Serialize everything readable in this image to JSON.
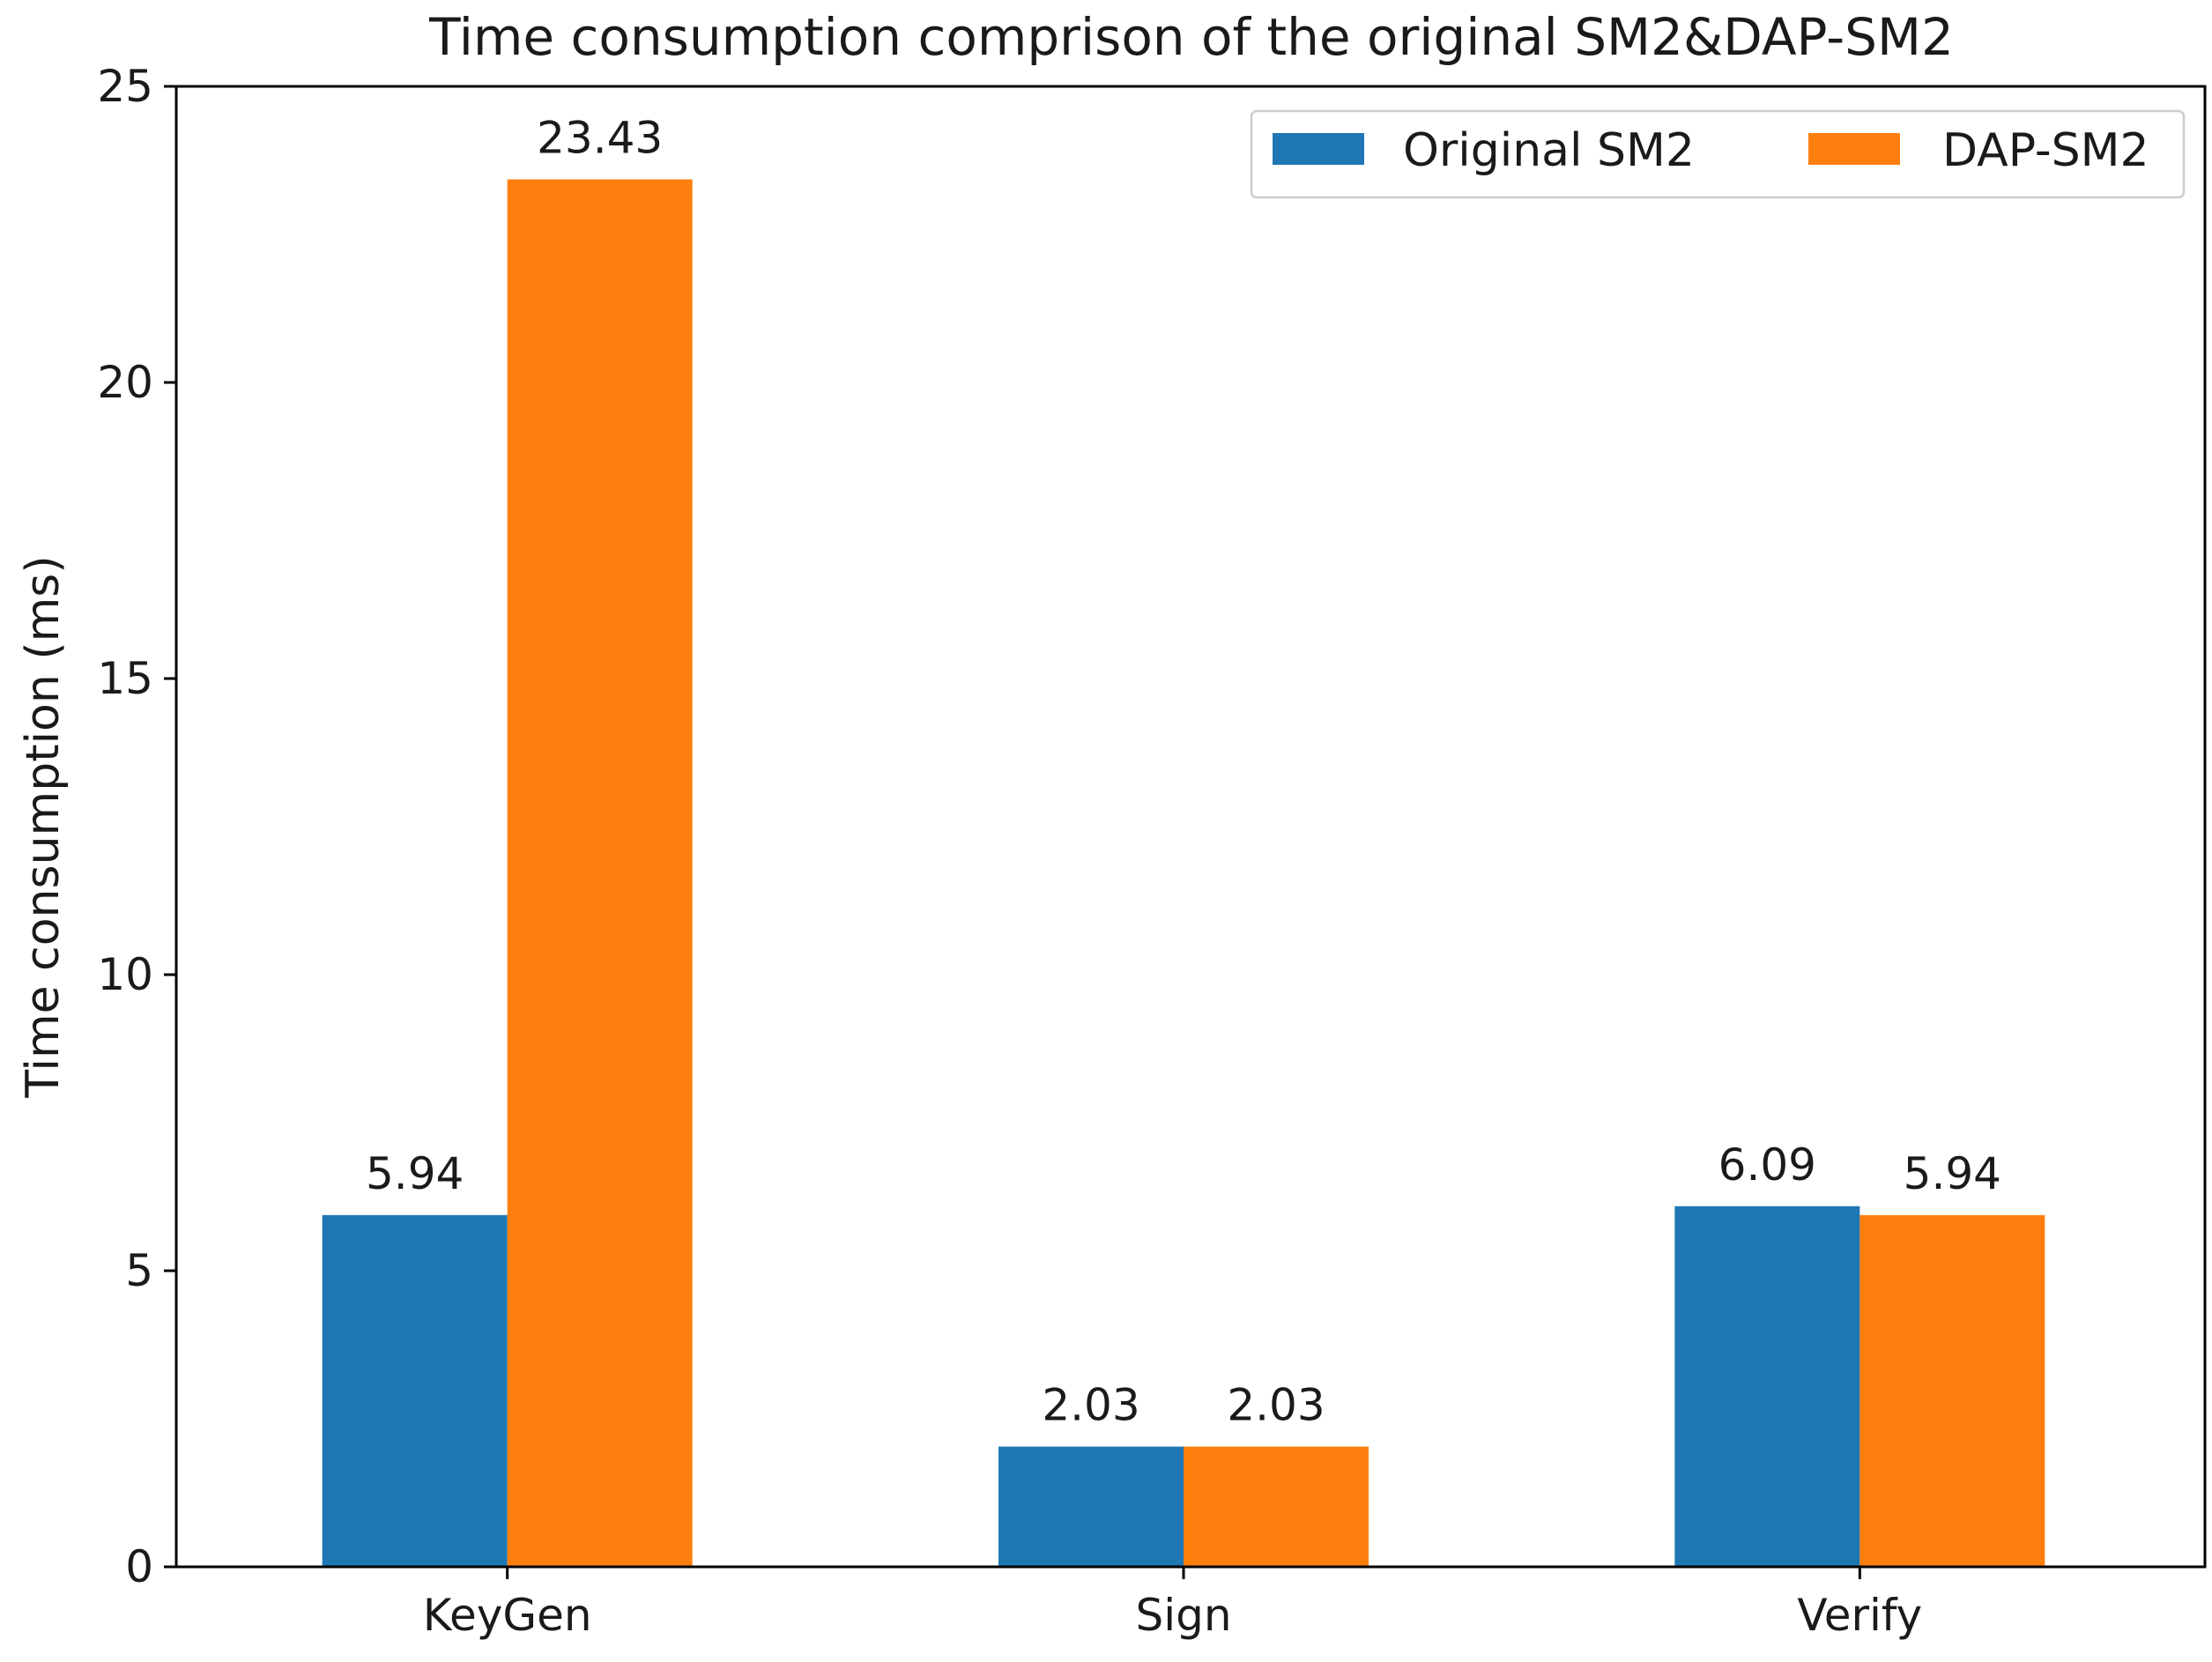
{
  "chart_data": {
    "type": "bar",
    "title": "Time consumption comprison of the original SM2&DAP-SM2",
    "xlabel": "",
    "ylabel": "Time consumption (ms)",
    "categories": [
      "KeyGen",
      "Sign",
      "Verify"
    ],
    "series": [
      {
        "name": "Original SM2",
        "values": [
          5.94,
          2.03,
          6.09
        ],
        "labels": [
          "5.94",
          "2.03",
          "6.09"
        ],
        "color": "#1f77b4"
      },
      {
        "name": "DAP-SM2",
        "values": [
          23.43,
          2.03,
          5.94
        ],
        "labels": [
          "23.43",
          "2.03",
          "5.94"
        ],
        "color": "#ff7f0e"
      }
    ],
    "ylim": [
      0,
      25
    ],
    "yticks": [
      0,
      5,
      10,
      15,
      20,
      25
    ],
    "grid": false,
    "legend_position": "top-right"
  }
}
